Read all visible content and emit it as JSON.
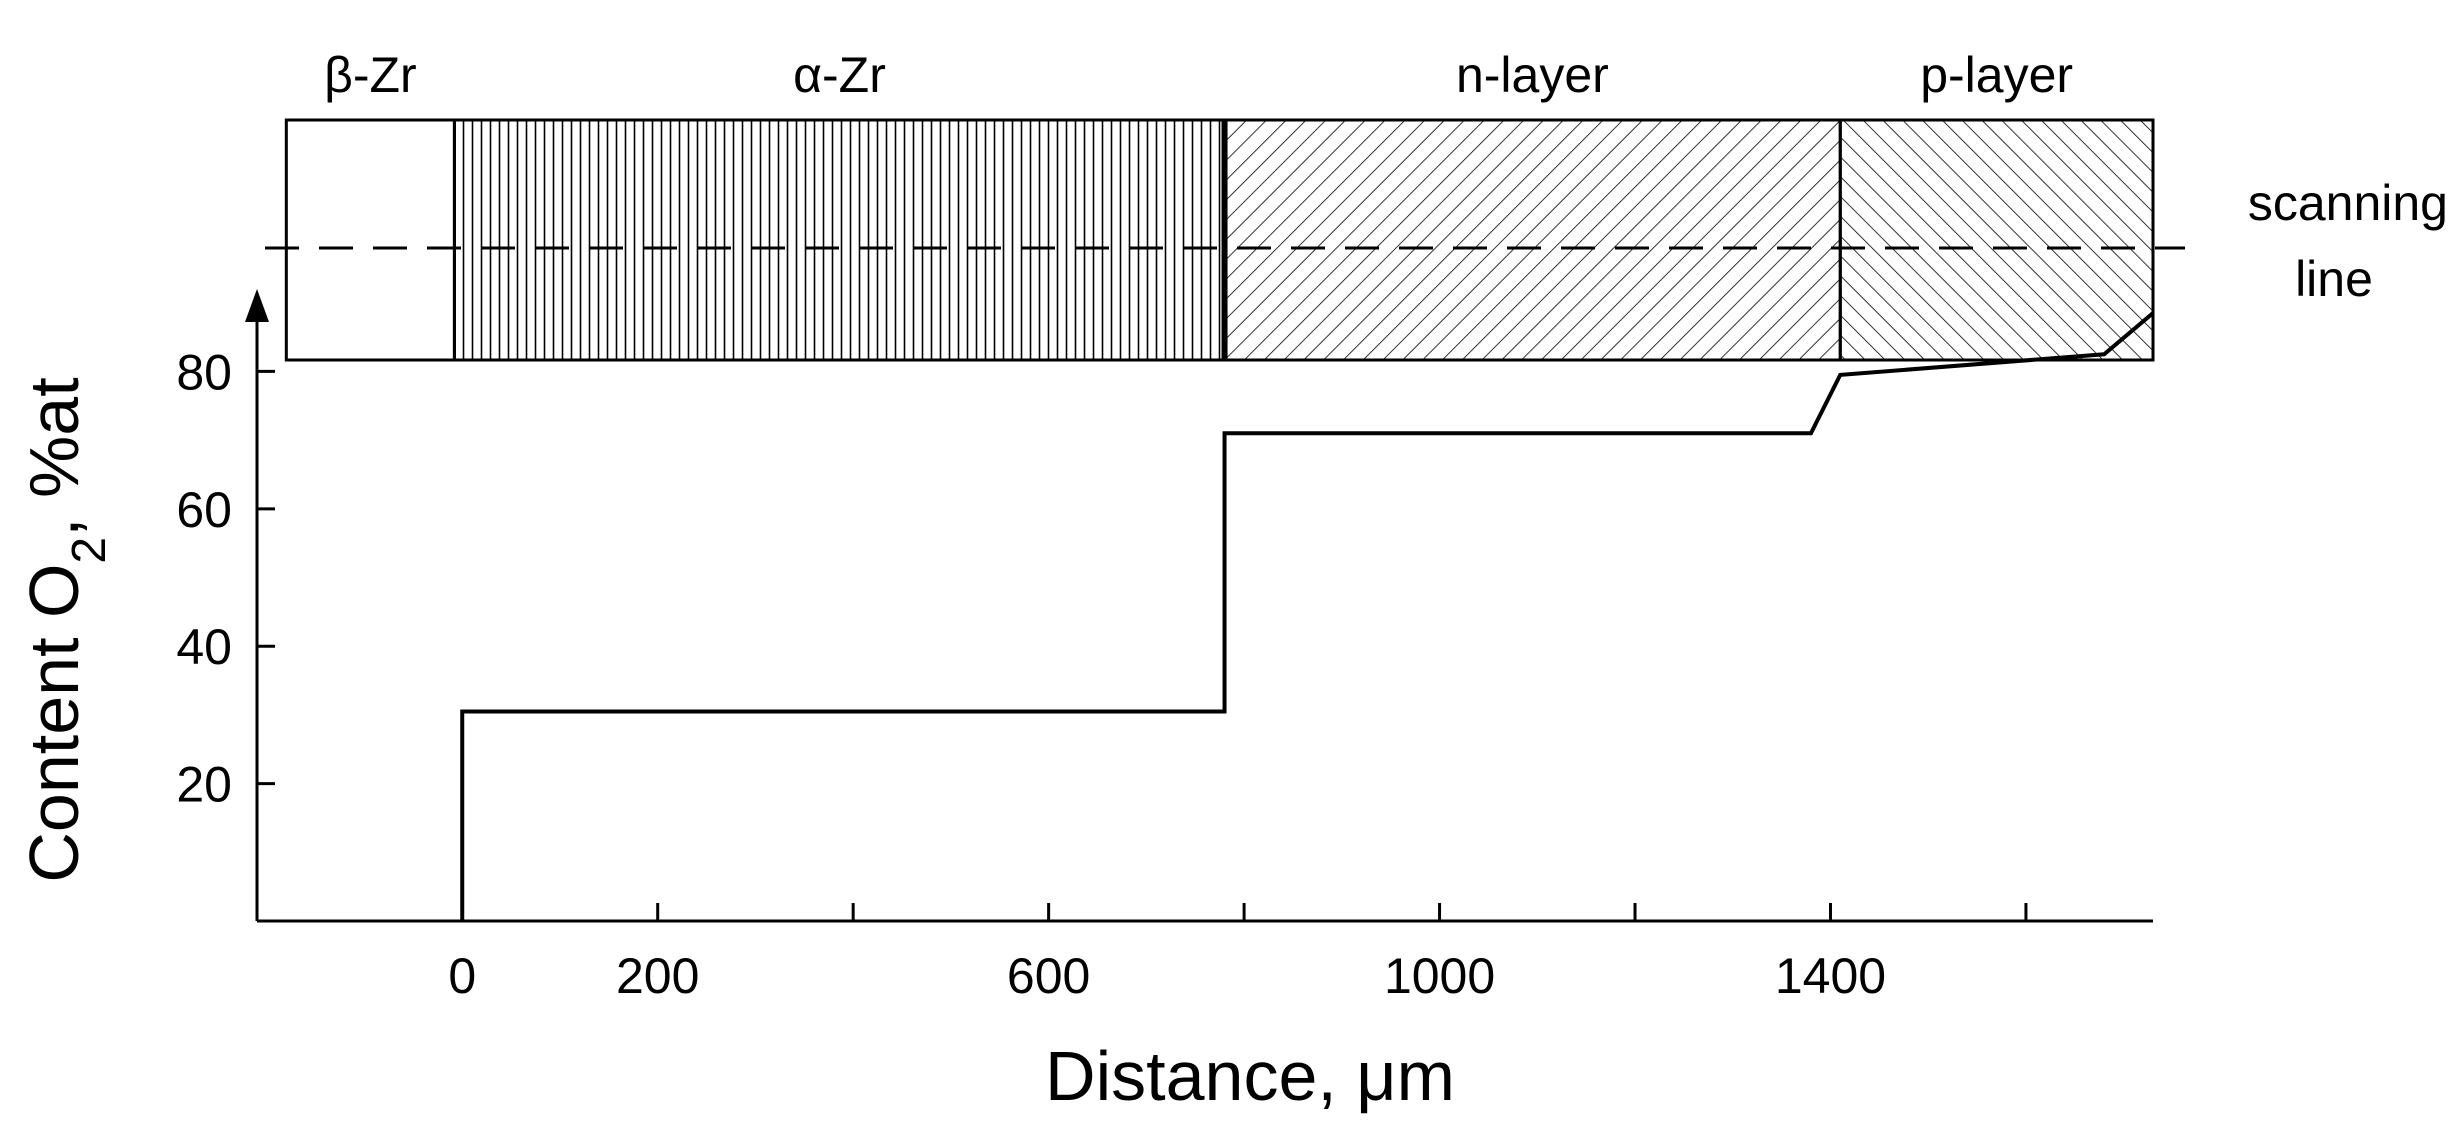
{
  "chart_data": {
    "type": "line",
    "xlabel": "Distance, μm",
    "ylabel_prefix": "Content O",
    "ylabel_subscript": "2",
    "ylabel_suffix": ", %at",
    "xlim": [
      -210,
      1730
    ],
    "ylim": [
      0,
      92
    ],
    "x_ticks": [
      0,
      200,
      400,
      600,
      800,
      1000,
      1200,
      1400,
      1600
    ],
    "x_tick_labels": [
      "0",
      "200",
      "",
      "600",
      "",
      "1000",
      "",
      "1400",
      ""
    ],
    "y_ticks": [
      20,
      40,
      60,
      80
    ],
    "y_tick_labels": [
      "20",
      "40",
      "60",
      "80"
    ],
    "series": [
      {
        "x": [
          0,
          0,
          780,
          780,
          1380,
          1410,
          1680,
          1730
        ],
        "y": [
          0,
          30.5,
          30.5,
          71,
          71,
          79.5,
          82.5,
          88.5
        ]
      }
    ],
    "layers": [
      {
        "label": "β-Zr",
        "from": -180,
        "to": -8,
        "pattern": "none"
      },
      {
        "label": "α-Zr",
        "from": -8,
        "to": 780,
        "pattern": "vertical"
      },
      {
        "label": "n-layer",
        "from": 780,
        "to": 1410,
        "pattern": "diag-right"
      },
      {
        "label": "p-layer",
        "from": 1410,
        "to": 1730,
        "pattern": "diag-left"
      }
    ],
    "scanning_line_label": [
      "scanning",
      "line"
    ],
    "grid": false,
    "legend": "none"
  }
}
